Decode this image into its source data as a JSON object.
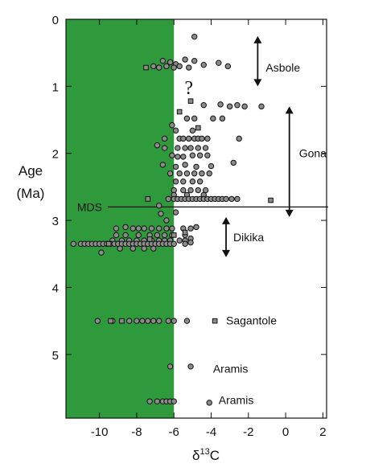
{
  "chart_data": {
    "type": "scatter",
    "title": "",
    "xlabel": "δ13C",
    "ylabel": [
      "Age",
      "(Ma)"
    ],
    "xlim": [
      -11.8,
      2.2
    ],
    "ylim": [
      0,
      5.95
    ],
    "y_inverted": true,
    "xticks": [
      -10,
      -8,
      -6,
      -4,
      -2,
      0,
      2
    ],
    "xtick_labels": [
      "-10",
      "-8",
      "-6",
      "-4",
      "-2",
      "0",
      "2"
    ],
    "yticks": [
      0,
      1,
      2,
      3,
      4,
      5
    ],
    "ytick_labels": [
      "0",
      "1",
      "2",
      "3",
      "4",
      "5"
    ],
    "shaded_region": {
      "x_from": -11.8,
      "x_to": -6.0,
      "color": "#2e9a3c"
    },
    "colors": {
      "background": "#ffffff",
      "shade": "#2e9a3c",
      "marker_fill": "#8c8c8c",
      "marker_stroke": "#111111"
    },
    "grid": false,
    "legend": "none",
    "reference_lines": [
      {
        "label": "MDS",
        "y": 2.8
      }
    ],
    "intervals": [
      {
        "label": "Asbole",
        "x": -1.5,
        "y_from": 0.25,
        "y_to": 1.0
      },
      {
        "label": "Gona",
        "x": 0.2,
        "y_from": 1.3,
        "y_to": 2.95
      },
      {
        "label": "Dikika",
        "x": -3.2,
        "y_from": 2.95,
        "y_to": 3.55
      }
    ],
    "annotations": [
      {
        "text": "?",
        "x": -5.2,
        "y": 1.02
      },
      {
        "text": "Sagantole",
        "x": -3.2,
        "y": 4.49
      },
      {
        "text": "Aramis",
        "x": -3.9,
        "y": 5.21
      },
      {
        "text": "Aramis",
        "x": -3.6,
        "y": 5.68
      }
    ],
    "series": [
      {
        "marker": "circle",
        "points": [
          [
            -4.9,
            0.26
          ],
          [
            -6.6,
            0.62
          ],
          [
            -6.2,
            0.64
          ],
          [
            -5.9,
            0.67
          ],
          [
            -5.4,
            0.6
          ],
          [
            -4.9,
            0.62
          ],
          [
            -4.4,
            0.68
          ],
          [
            -3.1,
            0.7
          ],
          [
            -3.6,
            0.65
          ],
          [
            -7.1,
            0.7
          ],
          [
            -6.8,
            0.72
          ],
          [
            -6.4,
            0.7
          ],
          [
            -6.0,
            0.72
          ],
          [
            -5.7,
            0.7
          ],
          [
            -5.2,
            0.72
          ],
          [
            -3.5,
            1.27
          ],
          [
            -3.0,
            1.3
          ],
          [
            -2.6,
            1.28
          ],
          [
            -2.2,
            1.3
          ],
          [
            -1.3,
            1.3
          ],
          [
            -4.4,
            1.28
          ],
          [
            -5.3,
            1.48
          ],
          [
            -4.9,
            1.48
          ],
          [
            -3.9,
            1.48
          ],
          [
            -3.4,
            1.48
          ],
          [
            -6.1,
            1.58
          ],
          [
            -5.9,
            1.66
          ],
          [
            -5.0,
            1.66
          ],
          [
            -6.5,
            1.78
          ],
          [
            -5.7,
            1.78
          ],
          [
            -5.5,
            1.78
          ],
          [
            -5.2,
            1.78
          ],
          [
            -4.9,
            1.78
          ],
          [
            -4.7,
            1.78
          ],
          [
            -4.5,
            1.78
          ],
          [
            -4.2,
            1.78
          ],
          [
            -2.5,
            1.78
          ],
          [
            -6.9,
            1.88
          ],
          [
            -6.5,
            1.92
          ],
          [
            -5.8,
            1.92
          ],
          [
            -5.4,
            1.92
          ],
          [
            -5.1,
            1.92
          ],
          [
            -4.7,
            1.92
          ],
          [
            -4.3,
            1.92
          ],
          [
            -6.1,
            2.03
          ],
          [
            -5.8,
            2.05
          ],
          [
            -5.5,
            2.05
          ],
          [
            -5.0,
            2.03
          ],
          [
            -4.6,
            2.03
          ],
          [
            -4.2,
            2.03
          ],
          [
            -6.6,
            2.17
          ],
          [
            -5.9,
            2.2
          ],
          [
            -5.4,
            2.17
          ],
          [
            -4.8,
            2.2
          ],
          [
            -4.0,
            2.19
          ],
          [
            -2.8,
            2.14
          ],
          [
            -6.2,
            2.3
          ],
          [
            -5.7,
            2.3
          ],
          [
            -5.3,
            2.3
          ],
          [
            -4.9,
            2.3
          ],
          [
            -4.5,
            2.3
          ],
          [
            -4.1,
            2.3
          ],
          [
            -5.9,
            2.42
          ],
          [
            -5.5,
            2.42
          ],
          [
            -5.0,
            2.42
          ],
          [
            -4.6,
            2.42
          ],
          [
            -6.0,
            2.55
          ],
          [
            -5.5,
            2.55
          ],
          [
            -5.1,
            2.55
          ],
          [
            -4.7,
            2.55
          ],
          [
            -4.3,
            2.55
          ],
          [
            -6.0,
            2.62
          ],
          [
            -5.3,
            2.62
          ],
          [
            -4.4,
            2.62
          ],
          [
            -6.3,
            2.68
          ],
          [
            -6.0,
            2.68
          ],
          [
            -5.8,
            2.68
          ],
          [
            -5.6,
            2.68
          ],
          [
            -5.4,
            2.68
          ],
          [
            -5.2,
            2.68
          ],
          [
            -5.0,
            2.68
          ],
          [
            -4.8,
            2.68
          ],
          [
            -4.6,
            2.68
          ],
          [
            -4.4,
            2.68
          ],
          [
            -4.2,
            2.68
          ],
          [
            -4.0,
            2.68
          ],
          [
            -3.8,
            2.68
          ],
          [
            -3.6,
            2.68
          ],
          [
            -3.4,
            2.68
          ],
          [
            -3.2,
            2.68
          ],
          [
            -2.9,
            2.68
          ],
          [
            -2.6,
            2.68
          ],
          [
            -6.8,
            2.78
          ],
          [
            -6.7,
            2.9
          ],
          [
            -5.9,
            2.88
          ],
          [
            -6.4,
            3.0
          ],
          [
            -9.1,
            3.12
          ],
          [
            -8.6,
            3.1
          ],
          [
            -8.2,
            3.12
          ],
          [
            -7.9,
            3.12
          ],
          [
            -7.6,
            3.12
          ],
          [
            -7.2,
            3.12
          ],
          [
            -6.8,
            3.12
          ],
          [
            -6.4,
            3.12
          ],
          [
            -6.1,
            3.12
          ],
          [
            -5.5,
            3.12
          ],
          [
            -5.1,
            3.12
          ],
          [
            -4.8,
            3.1
          ],
          [
            -9.1,
            3.22
          ],
          [
            -8.6,
            3.22
          ],
          [
            -7.9,
            3.22
          ],
          [
            -7.3,
            3.22
          ],
          [
            -6.9,
            3.22
          ],
          [
            -6.5,
            3.22
          ],
          [
            -6.1,
            3.22
          ],
          [
            -5.4,
            3.22
          ],
          [
            -9.3,
            3.3
          ],
          [
            -8.8,
            3.3
          ],
          [
            -8.4,
            3.3
          ],
          [
            -8.0,
            3.3
          ],
          [
            -7.6,
            3.3
          ],
          [
            -7.2,
            3.3
          ],
          [
            -6.8,
            3.3
          ],
          [
            -6.5,
            3.3
          ],
          [
            -6.2,
            3.3
          ],
          [
            -5.7,
            3.3
          ],
          [
            -5.4,
            3.3
          ],
          [
            -5.1,
            3.27
          ],
          [
            -11.4,
            3.35
          ],
          [
            -11.0,
            3.35
          ],
          [
            -10.8,
            3.35
          ],
          [
            -10.6,
            3.35
          ],
          [
            -10.4,
            3.35
          ],
          [
            -10.2,
            3.35
          ],
          [
            -10.0,
            3.35
          ],
          [
            -9.8,
            3.35
          ],
          [
            -9.6,
            3.35
          ],
          [
            -9.4,
            3.35
          ],
          [
            -9.2,
            3.35
          ],
          [
            -9.0,
            3.35
          ],
          [
            -8.8,
            3.35
          ],
          [
            -8.6,
            3.35
          ],
          [
            -8.4,
            3.35
          ],
          [
            -8.2,
            3.35
          ],
          [
            -8.0,
            3.35
          ],
          [
            -7.8,
            3.35
          ],
          [
            -7.6,
            3.35
          ],
          [
            -7.4,
            3.35
          ],
          [
            -7.2,
            3.35
          ],
          [
            -7.0,
            3.35
          ],
          [
            -6.8,
            3.35
          ],
          [
            -6.6,
            3.35
          ],
          [
            -6.4,
            3.35
          ],
          [
            -6.2,
            3.35
          ],
          [
            -6.0,
            3.35
          ],
          [
            -5.4,
            3.35
          ],
          [
            -5.1,
            3.33
          ],
          [
            -8.9,
            3.42
          ],
          [
            -8.2,
            3.42
          ],
          [
            -7.6,
            3.42
          ],
          [
            -7.1,
            3.42
          ],
          [
            -9.9,
            3.48
          ],
          [
            -10.1,
            4.5
          ],
          [
            -9.3,
            4.5
          ],
          [
            -8.4,
            4.5
          ],
          [
            -8.0,
            4.5
          ],
          [
            -7.7,
            4.5
          ],
          [
            -7.4,
            4.5
          ],
          [
            -7.1,
            4.5
          ],
          [
            -6.8,
            4.5
          ],
          [
            -6.3,
            4.5
          ],
          [
            -6.0,
            4.5
          ],
          [
            -5.3,
            4.5
          ],
          [
            -6.2,
            5.18
          ],
          [
            -5.1,
            5.18
          ],
          [
            -7.3,
            5.7
          ],
          [
            -6.9,
            5.7
          ],
          [
            -6.6,
            5.7
          ],
          [
            -6.4,
            5.7
          ],
          [
            -6.2,
            5.7
          ],
          [
            -6.0,
            5.7
          ],
          [
            -4.1,
            5.72
          ]
        ]
      },
      {
        "marker": "square",
        "points": [
          [
            -7.5,
            0.72
          ],
          [
            -5.7,
            1.38
          ],
          [
            -5.1,
            1.22
          ],
          [
            -4.7,
            1.62
          ],
          [
            -7.4,
            2.68
          ],
          [
            -0.8,
            2.7
          ],
          [
            -7.3,
            3.28
          ],
          [
            -6.0,
            3.22
          ],
          [
            -9.5,
            3.35
          ],
          [
            -5.4,
            3.18
          ],
          [
            -8.8,
            4.5
          ],
          [
            -3.8,
            4.5
          ],
          [
            -9.4,
            4.5
          ]
        ]
      }
    ]
  }
}
